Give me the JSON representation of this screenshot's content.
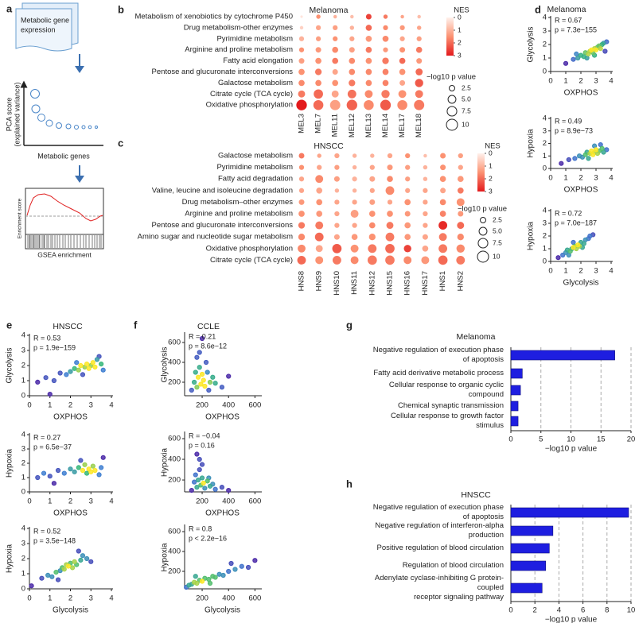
{
  "schematic": {
    "panel": "a",
    "document": [
      "Metabolic gene",
      "expression"
    ],
    "pca_ylabel": [
      "PCA score",
      "(explained variance)"
    ],
    "pca_xlabel": "Metabolic genes",
    "gsea_ylabel": "Enrichment score",
    "gsea_xlabel": "GSEA enrichment"
  },
  "chart_data": [
    {
      "type": "dotplot",
      "panel": "b",
      "title": "Melanoma",
      "categories": [
        "MEL3",
        "MEL7",
        "MEL11",
        "MEL12",
        "MEL13",
        "MEL14",
        "MEL17",
        "MEL18"
      ],
      "rows": [
        "Metabolism of xenobiotics by cytochrome P450",
        "Drug metabolism-other enzymes",
        "Pyrimidine metabolism",
        "Arginine and proline metabolism",
        "Fatty acid elongation",
        "Pentose and glucuronate interconversions",
        "Galactose metabolism",
        "Citrate cycle (TCA cycle)",
        "Oxidative phosphorylation"
      ],
      "nes": [
        [
          0.2,
          1.5,
          1.0,
          0.8,
          2.5,
          1.8,
          1.2,
          0.8
        ],
        [
          0.5,
          1.2,
          1.3,
          1.0,
          2.0,
          1.6,
          1.4,
          1.2
        ],
        [
          1.0,
          1.3,
          1.5,
          1.2,
          1.4,
          1.6,
          1.2,
          1.3
        ],
        [
          1.5,
          1.4,
          1.6,
          1.3,
          1.8,
          1.4,
          1.5,
          1.8
        ],
        [
          1.3,
          1.5,
          1.8,
          1.6,
          1.5,
          1.8,
          2.0,
          1.4
        ],
        [
          1.5,
          1.8,
          1.2,
          1.6,
          1.6,
          1.7,
          1.5,
          2.0
        ],
        [
          1.6,
          1.6,
          1.5,
          1.8,
          1.6,
          1.7,
          1.2,
          2.2
        ],
        [
          1.8,
          2.0,
          1.2,
          1.9,
          1.6,
          1.8,
          1.5,
          1.8
        ],
        [
          3.0,
          2.0,
          1.3,
          2.1,
          1.6,
          2.2,
          1.6,
          1.8
        ]
      ],
      "neglog10p": [
        [
          0.5,
          1.5,
          1,
          1,
          2.5,
          1.5,
          1,
          1
        ],
        [
          1,
          2,
          2,
          1.5,
          3,
          2,
          2,
          1.5
        ],
        [
          2,
          2,
          2,
          2,
          3,
          3,
          2,
          2
        ],
        [
          2,
          2.5,
          3,
          2.5,
          3,
          2,
          2.5,
          3
        ],
        [
          2.5,
          3,
          3,
          3,
          3,
          3.5,
          3,
          2.5
        ],
        [
          3,
          3.5,
          2.5,
          3,
          3,
          3,
          3,
          4
        ],
        [
          3,
          3,
          3,
          3.5,
          3,
          3,
          2.5,
          5.5
        ],
        [
          4,
          7,
          4,
          6,
          5,
          5.5,
          5,
          5
        ],
        [
          9,
          8,
          8.5,
          9,
          8,
          9,
          8,
          8.5
        ]
      ],
      "colorbar": {
        "title": "NES",
        "ticks": [
          0,
          1,
          2,
          3
        ],
        "colors": [
          "#fff1ec",
          "#fc9272",
          "#e31a1c"
        ]
      },
      "size_legend": {
        "title": "−log10 p value",
        "values": [
          2.5,
          {
            "value": 5,
            "label": "5.0"
          },
          7.5,
          10
        ]
      }
    },
    {
      "type": "dotplot",
      "panel": "c",
      "title": "HNSCC",
      "categories": [
        "HNS8",
        "HNS9",
        "HNS10",
        "HNS11",
        "HNS12",
        "HNS15",
        "HNS16",
        "HNS17",
        "HNS1",
        "HNS2"
      ],
      "rows": [
        "Galactose metabolism",
        "Pyrimidine metabolism",
        "Fatty acid degradation",
        "Valine, leucine and isoleucine degradation",
        "Drug metabolism–other enzymes",
        "Arginine and proline metabolism",
        "Pentose and glucuronate interconversions",
        "Amino sugar and nucleotide sugar metabolism",
        "Oxidative phosphorylation",
        "Citrate cycle (TCA cycle)"
      ],
      "nes": [
        [
          1.8,
          1.2,
          1.2,
          1.0,
          1.0,
          1.2,
          1.5,
          0.8,
          1.5,
          1.3
        ],
        [
          1.5,
          1.2,
          1.3,
          1.0,
          1.2,
          1.4,
          1.3,
          1.0,
          1.5,
          1.2
        ],
        [
          1.2,
          1.6,
          1.3,
          1.0,
          1.2,
          1.6,
          1.3,
          1.0,
          1.5,
          1.4
        ],
        [
          1.2,
          1.2,
          1.0,
          1.0,
          1.2,
          1.6,
          1.2,
          1.2,
          1.2,
          1.8
        ],
        [
          1.4,
          1.5,
          1.2,
          1.2,
          1.3,
          1.2,
          1.5,
          1.2,
          1.6,
          1.5
        ],
        [
          1.5,
          1.4,
          1.2,
          1.3,
          1.5,
          1.5,
          1.4,
          1.2,
          1.7,
          1.4
        ],
        [
          1.8,
          1.8,
          1.2,
          1.2,
          1.6,
          1.8,
          1.4,
          1.2,
          2.8,
          2.0
        ],
        [
          1.6,
          2.0,
          1.2,
          1.4,
          1.5,
          1.8,
          1.4,
          1.2,
          1.8,
          1.6
        ],
        [
          1.6,
          1.2,
          2.2,
          1.5,
          1.8,
          2.0,
          2.5,
          1.2,
          1.8,
          1.6
        ],
        [
          2.0,
          1.5,
          1.8,
          1.6,
          1.8,
          1.8,
          1.6,
          1.4,
          2.0,
          1.8
        ]
      ],
      "neglog10p": [
        [
          2.5,
          1.5,
          2,
          1.5,
          1.5,
          2,
          2,
          1,
          2.5,
          2
        ],
        [
          2,
          2,
          2,
          1.5,
          2,
          2.5,
          2,
          1.5,
          2.5,
          2
        ],
        [
          2,
          5,
          2.5,
          2,
          2.5,
          3,
          2,
          1.5,
          3,
          3
        ],
        [
          2,
          3,
          1.5,
          1.5,
          2,
          6,
          2,
          2,
          2.5,
          3
        ],
        [
          2.5,
          3,
          2,
          2,
          2.5,
          2,
          3,
          2,
          3,
          5
        ],
        [
          3,
          3,
          2,
          5,
          3,
          3,
          2.5,
          2,
          3,
          2.5
        ],
        [
          3.5,
          5,
          2,
          2,
          3,
          4,
          3,
          2,
          6,
          4
        ],
        [
          3.5,
          6,
          2.5,
          3,
          3.5,
          6,
          3,
          2.5,
          5,
          3.5
        ],
        [
          5,
          4,
          7,
          5,
          6,
          7,
          4.5,
          3,
          6,
          5.5
        ],
        [
          6,
          5,
          6,
          5,
          7,
          7,
          5,
          5,
          7,
          6
        ]
      ],
      "colorbar": {
        "title": "NES",
        "ticks": [
          0,
          1,
          2,
          3
        ],
        "colors": [
          "#fff1ec",
          "#fc9272",
          "#e31a1c"
        ]
      },
      "size_legend": {
        "title": "−log10 p value",
        "values": [
          2.5,
          {
            "value": 5,
            "label": "5.0"
          },
          7.5,
          10
        ]
      }
    },
    {
      "type": "scatter",
      "panel": "d",
      "title": "Melanoma",
      "xlabel": "OXPHOS",
      "ylabel": "Glycolysis",
      "annotations": [
        "R = 0.67",
        "p = 7.3e−155"
      ],
      "xlim": [
        0,
        4
      ],
      "ylim": [
        0,
        4
      ],
      "xticks": [
        0,
        1,
        2,
        3,
        4
      ],
      "yticks": [
        0,
        1,
        2,
        3,
        4
      ],
      "colors": [
        "#4b2aa8",
        "#3f7fd1",
        "#35b779",
        "#fde725"
      ],
      "x": [
        1.0,
        1.5,
        1.8,
        2.0,
        2.2,
        2.3,
        2.5,
        2.6,
        2.7,
        2.8,
        2.9,
        3.0,
        3.1,
        3.2,
        3.3,
        3.4,
        3.5,
        3.7,
        2.4,
        2.9,
        3.6,
        1.7
      ],
      "y": [
        0.6,
        0.9,
        1.0,
        1.2,
        1.1,
        1.4,
        1.3,
        1.5,
        1.6,
        1.4,
        1.7,
        1.6,
        1.8,
        1.9,
        1.7,
        2.0,
        2.1,
        2.2,
        1.0,
        1.2,
        1.5,
        1.3
      ]
    },
    {
      "type": "scatter",
      "xlabel": "OXPHOS",
      "ylabel": "Hypoxia",
      "annotations": [
        "R = 0.49",
        "p = 8.9e−73"
      ],
      "xlim": [
        0,
        4
      ],
      "ylim": [
        0,
        4
      ],
      "xticks": [
        0,
        1,
        2,
        3,
        4
      ],
      "yticks": [
        0,
        1,
        2,
        3,
        4
      ],
      "colors": [
        "#4b2aa8",
        "#3f7fd1",
        "#35b779",
        "#fde725"
      ],
      "x": [
        0.7,
        1.2,
        1.6,
        1.9,
        2.1,
        2.3,
        2.4,
        2.6,
        2.7,
        2.8,
        2.9,
        3.0,
        3.1,
        3.2,
        3.4,
        3.5,
        3.7,
        2.5,
        2.9,
        3.3
      ],
      "y": [
        0.4,
        0.7,
        0.8,
        1.0,
        0.9,
        1.1,
        1.3,
        1.2,
        1.4,
        1.1,
        1.3,
        1.5,
        1.2,
        1.4,
        1.6,
        1.3,
        1.5,
        0.8,
        1.8,
        1.9
      ]
    },
    {
      "type": "scatter",
      "xlabel": "Glycolysis",
      "ylabel": "Hypoxia",
      "annotations": [
        "R = 0.72",
        "p = 7.0e−187"
      ],
      "xlim": [
        0,
        4
      ],
      "ylim": [
        0,
        4
      ],
      "xticks": [
        0,
        1,
        2,
        3,
        4
      ],
      "yticks": [
        0,
        1,
        2,
        3,
        4
      ],
      "colors": [
        "#4b2aa8",
        "#3f7fd1",
        "#35b779",
        "#fde725"
      ],
      "x": [
        0.5,
        0.8,
        1.0,
        1.1,
        1.3,
        1.4,
        1.5,
        1.6,
        1.7,
        1.8,
        1.9,
        2.0,
        2.2,
        2.3,
        2.5,
        2.6,
        2.8,
        1.2,
        2.1,
        1.5
      ],
      "y": [
        0.3,
        0.5,
        0.7,
        0.9,
        0.8,
        1.0,
        1.1,
        1.2,
        1.0,
        1.3,
        1.2,
        1.5,
        1.4,
        1.7,
        1.8,
        2.0,
        2.1,
        0.5,
        1.1,
        1.5
      ]
    },
    {
      "type": "scatter",
      "panel": "e",
      "title": "HNSCC",
      "xlabel": "OXPHOS",
      "ylabel": "Glycolysis",
      "annotations": [
        "R = 0.53",
        "p = 1.9e−159"
      ],
      "xlim": [
        0,
        4
      ],
      "ylim": [
        0,
        4
      ],
      "xticks": [
        0,
        1,
        2,
        3,
        4
      ],
      "yticks": [
        0,
        1,
        2,
        3,
        4
      ],
      "colors": [
        "#4b2aa8",
        "#3f7fd1",
        "#35b779",
        "#fde725"
      ],
      "x": [
        0.4,
        0.8,
        1.2,
        1.5,
        1.8,
        2.0,
        2.2,
        2.4,
        2.5,
        2.7,
        2.8,
        2.9,
        3.0,
        3.1,
        3.2,
        3.3,
        3.5,
        3.6,
        2.6,
        1.0,
        3.4,
        2.3
      ],
      "y": [
        0.9,
        1.2,
        1.0,
        1.5,
        1.4,
        1.6,
        1.8,
        1.7,
        2.0,
        1.9,
        2.1,
        1.8,
        2.0,
        2.2,
        1.9,
        2.4,
        2.1,
        1.7,
        1.4,
        0.1,
        2.6,
        2.2
      ]
    },
    {
      "type": "scatter",
      "xlabel": "OXPHOS",
      "ylabel": "Hypoxia",
      "annotations": [
        "R = 0.27",
        "p = 6.5e−37"
      ],
      "xlim": [
        0,
        4
      ],
      "ylim": [
        0,
        4
      ],
      "xticks": [
        0,
        1,
        2,
        3,
        4
      ],
      "yticks": [
        0,
        1,
        2,
        3,
        4
      ],
      "colors": [
        "#4b2aa8",
        "#3f7fd1",
        "#35b779",
        "#fde725"
      ],
      "x": [
        0.4,
        0.7,
        1.0,
        1.4,
        1.7,
        2.0,
        2.2,
        2.4,
        2.6,
        2.7,
        2.8,
        2.9,
        3.0,
        3.1,
        3.2,
        3.4,
        3.5,
        3.6,
        1.2,
        2.5
      ],
      "y": [
        1.0,
        1.3,
        1.1,
        1.5,
        1.3,
        1.6,
        1.4,
        1.7,
        1.5,
        1.9,
        1.3,
        1.6,
        1.4,
        1.8,
        1.5,
        1.2,
        1.7,
        2.4,
        0.6,
        2.2
      ]
    },
    {
      "type": "scatter",
      "xlabel": "Glycolysis",
      "ylabel": "Hypoxia",
      "annotations": [
        "R = 0.52",
        "p = 3.5e−148"
      ],
      "xlim": [
        0,
        4
      ],
      "ylim": [
        0,
        4
      ],
      "xticks": [
        0,
        1,
        2,
        3,
        4
      ],
      "yticks": [
        0,
        1,
        2,
        3,
        4
      ],
      "colors": [
        "#4b2aa8",
        "#3f7fd1",
        "#35b779",
        "#fde725"
      ],
      "x": [
        0.1,
        0.6,
        0.9,
        1.1,
        1.3,
        1.5,
        1.6,
        1.7,
        1.8,
        1.9,
        2.0,
        2.1,
        2.2,
        2.3,
        2.5,
        2.6,
        2.8,
        1.4,
        2.4,
        3.0
      ],
      "y": [
        0.2,
        0.7,
        0.9,
        0.8,
        1.1,
        1.2,
        1.4,
        1.3,
        1.6,
        1.5,
        1.7,
        1.4,
        1.8,
        1.6,
        1.9,
        2.2,
        2.0,
        0.6,
        2.5,
        1.8
      ]
    },
    {
      "type": "scatter",
      "panel": "f",
      "title": "CCLE",
      "xlabel": "OXPHOS",
      "ylabel": "Glycolysis",
      "annotations": [
        "R = 0.21",
        "p = 8.6e−12"
      ],
      "xlim": [
        67,
        640
      ],
      "ylim": [
        64,
        688
      ],
      "xticks": [
        200,
        400,
        600
      ],
      "yticks": [
        200,
        400,
        600
      ],
      "colors": [
        "#4b2aa8",
        "#3f7fd1",
        "#35b779",
        "#fde725"
      ],
      "x": [
        120,
        140,
        150,
        160,
        170,
        180,
        190,
        200,
        210,
        220,
        240,
        260,
        280,
        300,
        350,
        180,
        200,
        230,
        160,
        250,
        400
      ],
      "y": [
        120,
        200,
        300,
        150,
        250,
        350,
        180,
        280,
        220,
        160,
        300,
        200,
        250,
        190,
        150,
        500,
        640,
        400,
        450,
        120,
        260
      ]
    },
    {
      "type": "scatter",
      "xlabel": "OXPHOS",
      "ylabel": "Hypoxia",
      "annotations": [
        "R = −0.04",
        "p = 0.16"
      ],
      "xlim": [
        67,
        640
      ],
      "ylim": [
        85,
        654
      ],
      "xticks": [
        200,
        400,
        600
      ],
      "yticks": [
        200,
        400,
        600
      ],
      "colors": [
        "#4b2aa8",
        "#3f7fd1",
        "#35b779",
        "#fde725"
      ],
      "x": [
        120,
        140,
        150,
        160,
        170,
        180,
        190,
        200,
        210,
        220,
        240,
        260,
        280,
        300,
        350,
        400,
        180,
        200,
        160,
        250
      ],
      "y": [
        100,
        180,
        250,
        130,
        200,
        300,
        150,
        220,
        170,
        120,
        190,
        140,
        160,
        110,
        130,
        100,
        400,
        350,
        450,
        220
      ]
    },
    {
      "type": "scatter",
      "xlabel": "Glycolysis",
      "ylabel": "Hypoxia",
      "annotations": [
        "R = 0.8",
        "p < 2.2e−16"
      ],
      "xlim": [
        67,
        640
      ],
      "ylim": [
        24,
        656
      ],
      "xticks": [
        200,
        400,
        600
      ],
      "yticks": [
        200,
        400,
        600
      ],
      "colors": [
        "#4b2aa8",
        "#3f7fd1",
        "#35b779",
        "#fde725"
      ],
      "x": [
        80,
        100,
        120,
        140,
        160,
        180,
        200,
        220,
        250,
        280,
        300,
        330,
        360,
        400,
        450,
        500,
        550,
        600,
        150,
        260,
        420
      ],
      "y": [
        40,
        60,
        70,
        90,
        80,
        110,
        100,
        130,
        120,
        150,
        140,
        170,
        160,
        200,
        220,
        250,
        240,
        310,
        150,
        80,
        280
      ]
    },
    {
      "type": "hbar",
      "panel": "g",
      "title": "Melanoma",
      "categories": [
        "Negative regulation of execution phase of apoptosis",
        "Fatty acid derivative metabolic process",
        "Cellular response to organic cyclic compound",
        "Chemical synaptic transmission",
        "Cellular response to growth factor stimulus"
      ],
      "values": [
        17.3,
        1.9,
        1.6,
        1.2,
        1.2
      ],
      "xlim": [
        0,
        20
      ],
      "xticks": [
        0,
        5,
        10,
        15,
        20
      ],
      "xlabel": "−log10 p value",
      "color": "#1e1ee0",
      "grid": true
    },
    {
      "type": "hbar",
      "panel": "h",
      "title": "HNSCC",
      "categories": [
        "Negative regulation of execution phase of apoptosis",
        "Negative regulation of interferon-alpha production",
        "Positive regulation of blood circulation",
        "Regulation of blood circulation",
        "Adenylate cyclase-inhibiting G protein-coupled\nreceptor signaling pathway"
      ],
      "values": [
        9.8,
        3.5,
        3.2,
        2.9,
        2.6
      ],
      "xlim": [
        0,
        10
      ],
      "xticks": [
        0,
        2,
        4,
        6,
        8,
        10
      ],
      "xlabel": "−log10 p value",
      "color": "#1e1ee0",
      "grid": true
    }
  ]
}
